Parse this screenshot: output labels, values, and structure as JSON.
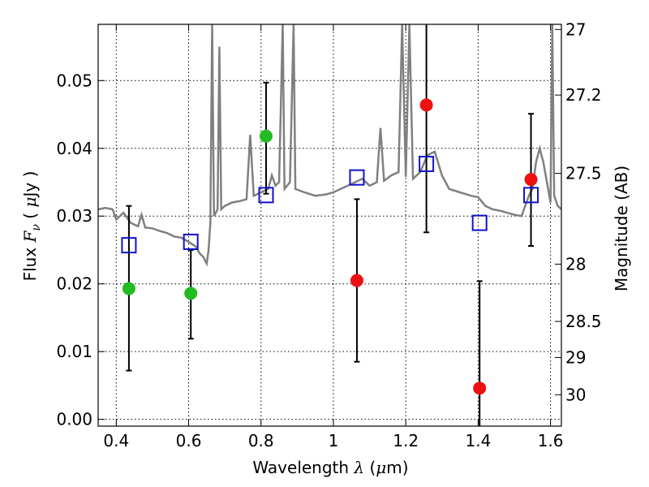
{
  "chart_data": {
    "type": "scatter",
    "xlabel": "Wavelength  λ (μm)",
    "ylabel": "Flux  F_ν  ( μJy )",
    "right_ylabel": "Magnitude (AB)",
    "xlim": [
      0.35,
      1.63
    ],
    "ylim": [
      -0.001,
      0.0583
    ],
    "grid": true,
    "x_ticks": [
      {
        "value": 0.4,
        "label": "0.4"
      },
      {
        "value": 0.6,
        "label": "0.6"
      },
      {
        "value": 0.8,
        "label": "0.8"
      },
      {
        "value": 1.0,
        "label": "1"
      },
      {
        "value": 1.2,
        "label": "1.2"
      },
      {
        "value": 1.4,
        "label": "1.4"
      },
      {
        "value": 1.6,
        "label": "1.6"
      }
    ],
    "y_ticks": [
      {
        "value": 0.0,
        "label": "0.00"
      },
      {
        "value": 0.01,
        "label": "0.01"
      },
      {
        "value": 0.02,
        "label": "0.02"
      },
      {
        "value": 0.03,
        "label": "0.03"
      },
      {
        "value": 0.04,
        "label": "0.04"
      },
      {
        "value": 0.05,
        "label": "0.05"
      }
    ],
    "right_ticks": [
      {
        "value": 27,
        "label": "27"
      },
      {
        "value": 27.2,
        "label": "27.2"
      },
      {
        "value": 27.5,
        "label": "27.5"
      },
      {
        "value": 28,
        "label": "28"
      },
      {
        "value": 28.5,
        "label": "28.5"
      },
      {
        "value": 29,
        "label": "29"
      },
      {
        "value": 30,
        "label": "30"
      }
    ],
    "series": [
      {
        "marker": "circle",
        "color": "#22bb22",
        "points": [
          {
            "x": 0.435,
            "y": 0.0193,
            "yerr_low": 0.0072,
            "yerr_high": 0.0315
          },
          {
            "x": 0.606,
            "y": 0.0186,
            "yerr_low": 0.0119,
            "yerr_high": 0.025
          },
          {
            "x": 0.814,
            "y": 0.0418,
            "yerr_low": 0.0333,
            "yerr_high": 0.0497
          }
        ]
      },
      {
        "marker": "circle",
        "color": "#ee1111",
        "points": [
          {
            "x": 1.065,
            "y": 0.0205,
            "yerr_low": 0.0085,
            "yerr_high": 0.0325
          },
          {
            "x": 1.257,
            "y": 0.0464,
            "yerr_low": 0.0276,
            "yerr_high": 0.0583
          },
          {
            "x": 1.404,
            "y": 0.0046,
            "yerr_low": -0.001,
            "yerr_high": 0.0204
          },
          {
            "x": 1.546,
            "y": 0.0354,
            "yerr_low": 0.0256,
            "yerr_high": 0.0451
          }
        ]
      },
      {
        "marker": "square-open",
        "color": "#1111cc",
        "points": [
          {
            "x": 0.435,
            "y": 0.0257
          },
          {
            "x": 0.606,
            "y": 0.0262
          },
          {
            "x": 0.814,
            "y": 0.0331
          },
          {
            "x": 1.065,
            "y": 0.0357
          },
          {
            "x": 1.257,
            "y": 0.0377
          },
          {
            "x": 1.404,
            "y": 0.029
          },
          {
            "x": 1.546,
            "y": 0.0331
          }
        ]
      },
      {
        "marker": "line",
        "color": "#808080",
        "points": [
          {
            "x": 0.35,
            "y": 0.031
          },
          {
            "x": 0.37,
            "y": 0.0312
          },
          {
            "x": 0.39,
            "y": 0.031
          },
          {
            "x": 0.4,
            "y": 0.0295
          },
          {
            "x": 0.42,
            "y": 0.0305
          },
          {
            "x": 0.44,
            "y": 0.029
          },
          {
            "x": 0.46,
            "y": 0.0285
          },
          {
            "x": 0.47,
            "y": 0.0302
          },
          {
            "x": 0.48,
            "y": 0.0283
          },
          {
            "x": 0.5,
            "y": 0.0282
          },
          {
            "x": 0.52,
            "y": 0.0278
          },
          {
            "x": 0.54,
            "y": 0.0275
          },
          {
            "x": 0.56,
            "y": 0.027
          },
          {
            "x": 0.58,
            "y": 0.0268
          },
          {
            "x": 0.6,
            "y": 0.0262
          },
          {
            "x": 0.62,
            "y": 0.0255
          },
          {
            "x": 0.63,
            "y": 0.0245
          },
          {
            "x": 0.64,
            "y": 0.024
          },
          {
            "x": 0.65,
            "y": 0.023
          },
          {
            "x": 0.655,
            "y": 0.025
          },
          {
            "x": 0.66,
            "y": 0.029
          },
          {
            "x": 0.665,
            "y": 0.0583
          },
          {
            "x": 0.67,
            "y": 0.03
          },
          {
            "x": 0.68,
            "y": 0.031
          },
          {
            "x": 0.685,
            "y": 0.055
          },
          {
            "x": 0.69,
            "y": 0.031
          },
          {
            "x": 0.7,
            "y": 0.0315
          },
          {
            "x": 0.72,
            "y": 0.032
          },
          {
            "x": 0.74,
            "y": 0.0322
          },
          {
            "x": 0.76,
            "y": 0.0325
          },
          {
            "x": 0.77,
            "y": 0.042
          },
          {
            "x": 0.78,
            "y": 0.033
          },
          {
            "x": 0.8,
            "y": 0.0335
          },
          {
            "x": 0.82,
            "y": 0.034
          },
          {
            "x": 0.83,
            "y": 0.036
          },
          {
            "x": 0.84,
            "y": 0.0345
          },
          {
            "x": 0.85,
            "y": 0.035
          },
          {
            "x": 0.86,
            "y": 0.0583
          },
          {
            "x": 0.865,
            "y": 0.034
          },
          {
            "x": 0.88,
            "y": 0.035
          },
          {
            "x": 0.89,
            "y": 0.0583
          },
          {
            "x": 0.895,
            "y": 0.034
          },
          {
            "x": 0.92,
            "y": 0.0335
          },
          {
            "x": 0.95,
            "y": 0.033
          },
          {
            "x": 0.98,
            "y": 0.0332
          },
          {
            "x": 1.0,
            "y": 0.0335
          },
          {
            "x": 1.02,
            "y": 0.034
          },
          {
            "x": 1.04,
            "y": 0.0345
          },
          {
            "x": 1.06,
            "y": 0.035
          },
          {
            "x": 1.08,
            "y": 0.0355
          },
          {
            "x": 1.1,
            "y": 0.0345
          },
          {
            "x": 1.12,
            "y": 0.035
          },
          {
            "x": 1.13,
            "y": 0.043
          },
          {
            "x": 1.14,
            "y": 0.0352
          },
          {
            "x": 1.16,
            "y": 0.036
          },
          {
            "x": 1.18,
            "y": 0.0365
          },
          {
            "x": 1.19,
            "y": 0.0583
          },
          {
            "x": 1.2,
            "y": 0.0358
          },
          {
            "x": 1.21,
            "y": 0.0583
          },
          {
            "x": 1.22,
            "y": 0.0355
          },
          {
            "x": 1.24,
            "y": 0.0365
          },
          {
            "x": 1.26,
            "y": 0.039
          },
          {
            "x": 1.28,
            "y": 0.0395
          },
          {
            "x": 1.3,
            "y": 0.036
          },
          {
            "x": 1.32,
            "y": 0.034
          },
          {
            "x": 1.35,
            "y": 0.0335
          },
          {
            "x": 1.38,
            "y": 0.033
          },
          {
            "x": 1.4,
            "y": 0.0328
          },
          {
            "x": 1.42,
            "y": 0.0315
          },
          {
            "x": 1.44,
            "y": 0.031
          },
          {
            "x": 1.46,
            "y": 0.0308
          },
          {
            "x": 1.48,
            "y": 0.0305
          },
          {
            "x": 1.5,
            "y": 0.0302
          },
          {
            "x": 1.52,
            "y": 0.03
          },
          {
            "x": 1.54,
            "y": 0.033
          },
          {
            "x": 1.55,
            "y": 0.034
          },
          {
            "x": 1.56,
            "y": 0.038
          },
          {
            "x": 1.57,
            "y": 0.04
          },
          {
            "x": 1.58,
            "y": 0.038
          },
          {
            "x": 1.59,
            "y": 0.035
          },
          {
            "x": 1.6,
            "y": 0.032
          },
          {
            "x": 1.605,
            "y": 0.0583
          },
          {
            "x": 1.61,
            "y": 0.033
          },
          {
            "x": 1.62,
            "y": 0.0315
          },
          {
            "x": 1.63,
            "y": 0.031
          }
        ]
      }
    ]
  }
}
